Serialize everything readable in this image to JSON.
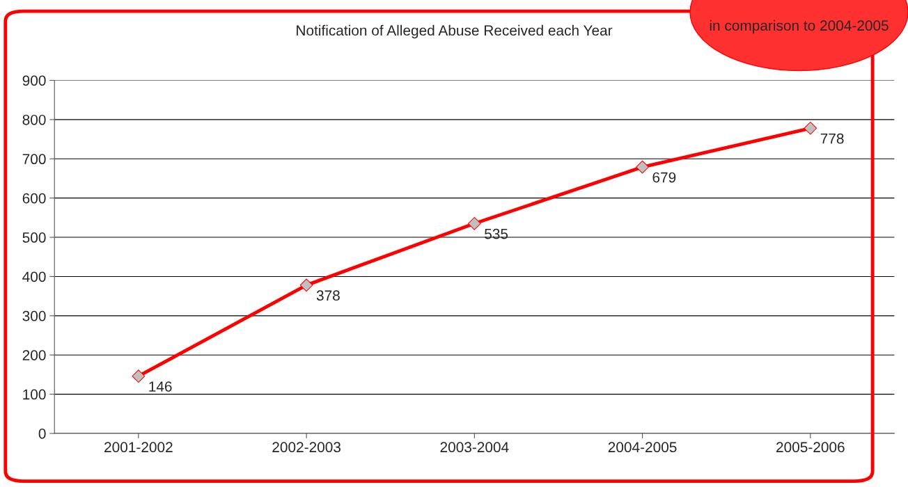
{
  "chart_data": {
    "type": "line",
    "title": "Notification of Alleged Abuse Received each Year",
    "categories": [
      "2001-2002",
      "2002-2003",
      "2003-2004",
      "2004-2005",
      "2005-2006"
    ],
    "series": [
      {
        "color": "#ff0000",
        "values": [
          146,
          378,
          535,
          679,
          778
        ]
      }
    ],
    "ylim": [
      0,
      900
    ],
    "yticks": [
      0,
      100,
      200,
      300,
      400,
      500,
      600,
      700,
      800,
      900
    ],
    "grid": "y",
    "marker": "diamond",
    "line_style": "solid",
    "data_labels": true,
    "annotations": [
      "in comparison to 2004-2005"
    ]
  }
}
